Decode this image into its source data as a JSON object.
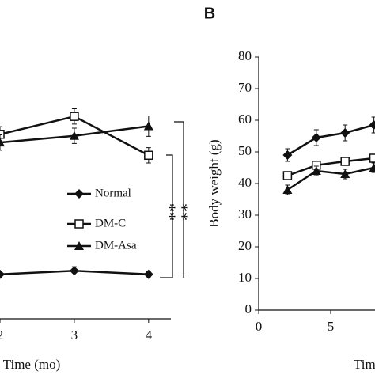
{
  "chart_data": [
    {
      "type": "line",
      "x_label": "Time (mo)",
      "x": [
        2,
        3,
        4
      ],
      "xlim": [
        2,
        4.3
      ],
      "xticks": [
        2,
        3,
        4
      ],
      "ylim": [
        0,
        500
      ],
      "series": [
        {
          "name": "Normal",
          "color": "#111111",
          "marker": "diamond",
          "values": [
            87,
            94,
            87
          ],
          "errors": [
            5,
            8,
            5
          ]
        },
        {
          "name": "DM-C",
          "color": "#111111",
          "marker": "square-open",
          "values": [
            361,
            396,
            320
          ],
          "errors": [
            15,
            15,
            15
          ]
        },
        {
          "name": "DM-Asa",
          "color": "#111111",
          "marker": "triangle",
          "values": [
            345,
            358,
            377
          ],
          "errors": [
            15,
            15,
            20
          ]
        }
      ],
      "annotations": [
        "**",
        "**"
      ]
    },
    {
      "type": "line",
      "panel_label": "B",
      "y_label": "Body weight (g)",
      "x_label": "Time",
      "x": [
        2,
        4,
        6,
        8
      ],
      "xlim": [
        0,
        10
      ],
      "xticks": [
        0,
        5
      ],
      "ylim": [
        0,
        80
      ],
      "yticks": [
        0,
        10,
        20,
        30,
        40,
        50,
        60,
        70,
        80
      ],
      "series": [
        {
          "name": "Normal",
          "color": "#111111",
          "marker": "diamond",
          "values": [
            49,
            54.5,
            56,
            58.5
          ],
          "errors": [
            2,
            2.5,
            2.5,
            2.5
          ]
        },
        {
          "name": "DM-C",
          "color": "#111111",
          "marker": "square-open",
          "values": [
            42.5,
            45.8,
            47,
            48
          ],
          "errors": [
            1,
            1,
            1.2,
            1.2
          ]
        },
        {
          "name": "DM-Asa",
          "color": "#111111",
          "marker": "triangle",
          "values": [
            38,
            44,
            43,
            45
          ],
          "errors": [
            1.5,
            1.5,
            1.5,
            1.5
          ]
        }
      ]
    }
  ]
}
